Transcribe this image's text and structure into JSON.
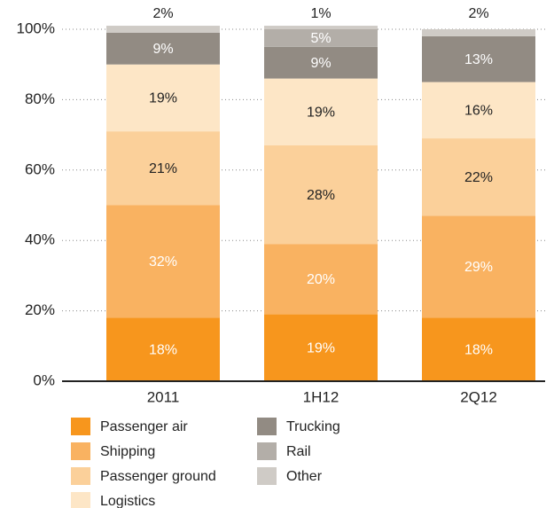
{
  "chart_data": {
    "type": "stacked_bar",
    "categories": [
      "2011",
      "1H12",
      "2Q12"
    ],
    "series": [
      {
        "name": "Passenger air",
        "color": "#f7961d",
        "label_color": "#ffffff",
        "values": [
          18,
          19,
          18
        ],
        "value_labels": [
          "18%",
          "19%",
          "18%"
        ]
      },
      {
        "name": "Shipping",
        "color": "#f9b261",
        "label_color": "#ffffff",
        "values": [
          32,
          20,
          29
        ],
        "value_labels": [
          "32%",
          "20%",
          "29%"
        ]
      },
      {
        "name": "Passenger ground",
        "color": "#fbd09a",
        "label_color": "#222222",
        "values": [
          21,
          28,
          22
        ],
        "value_labels": [
          "21%",
          "28%",
          "22%"
        ]
      },
      {
        "name": "Logistics",
        "color": "#fde6c6",
        "label_color": "#222222",
        "values": [
          19,
          19,
          16
        ],
        "value_labels": [
          "19%",
          "19%",
          "16%"
        ]
      },
      {
        "name": "Trucking",
        "color": "#928b83",
        "label_color": "#ffffff",
        "values": [
          9,
          9,
          13
        ],
        "value_labels": [
          "9%",
          "9%",
          "13%"
        ]
      },
      {
        "name": "Rail",
        "color": "#b3aea8",
        "label_color": "#ffffff",
        "values": [
          null,
          5,
          null
        ],
        "value_labels": [
          null,
          "5%",
          null
        ]
      },
      {
        "name": "Other",
        "color": "#cfcbc6",
        "label_color": "#222222",
        "values": [
          2,
          1,
          2
        ],
        "value_labels": [
          "2%",
          "1%",
          "2%"
        ]
      }
    ],
    "ylim": [
      0,
      100
    ],
    "yticks": [
      {
        "value": 0,
        "label": "0%"
      },
      {
        "value": 20,
        "label": "20%"
      },
      {
        "value": 40,
        "label": "40%"
      },
      {
        "value": 60,
        "label": "60%"
      },
      {
        "value": 80,
        "label": "80%"
      },
      {
        "value": 100,
        "label": "100%"
      }
    ],
    "grid": true
  }
}
